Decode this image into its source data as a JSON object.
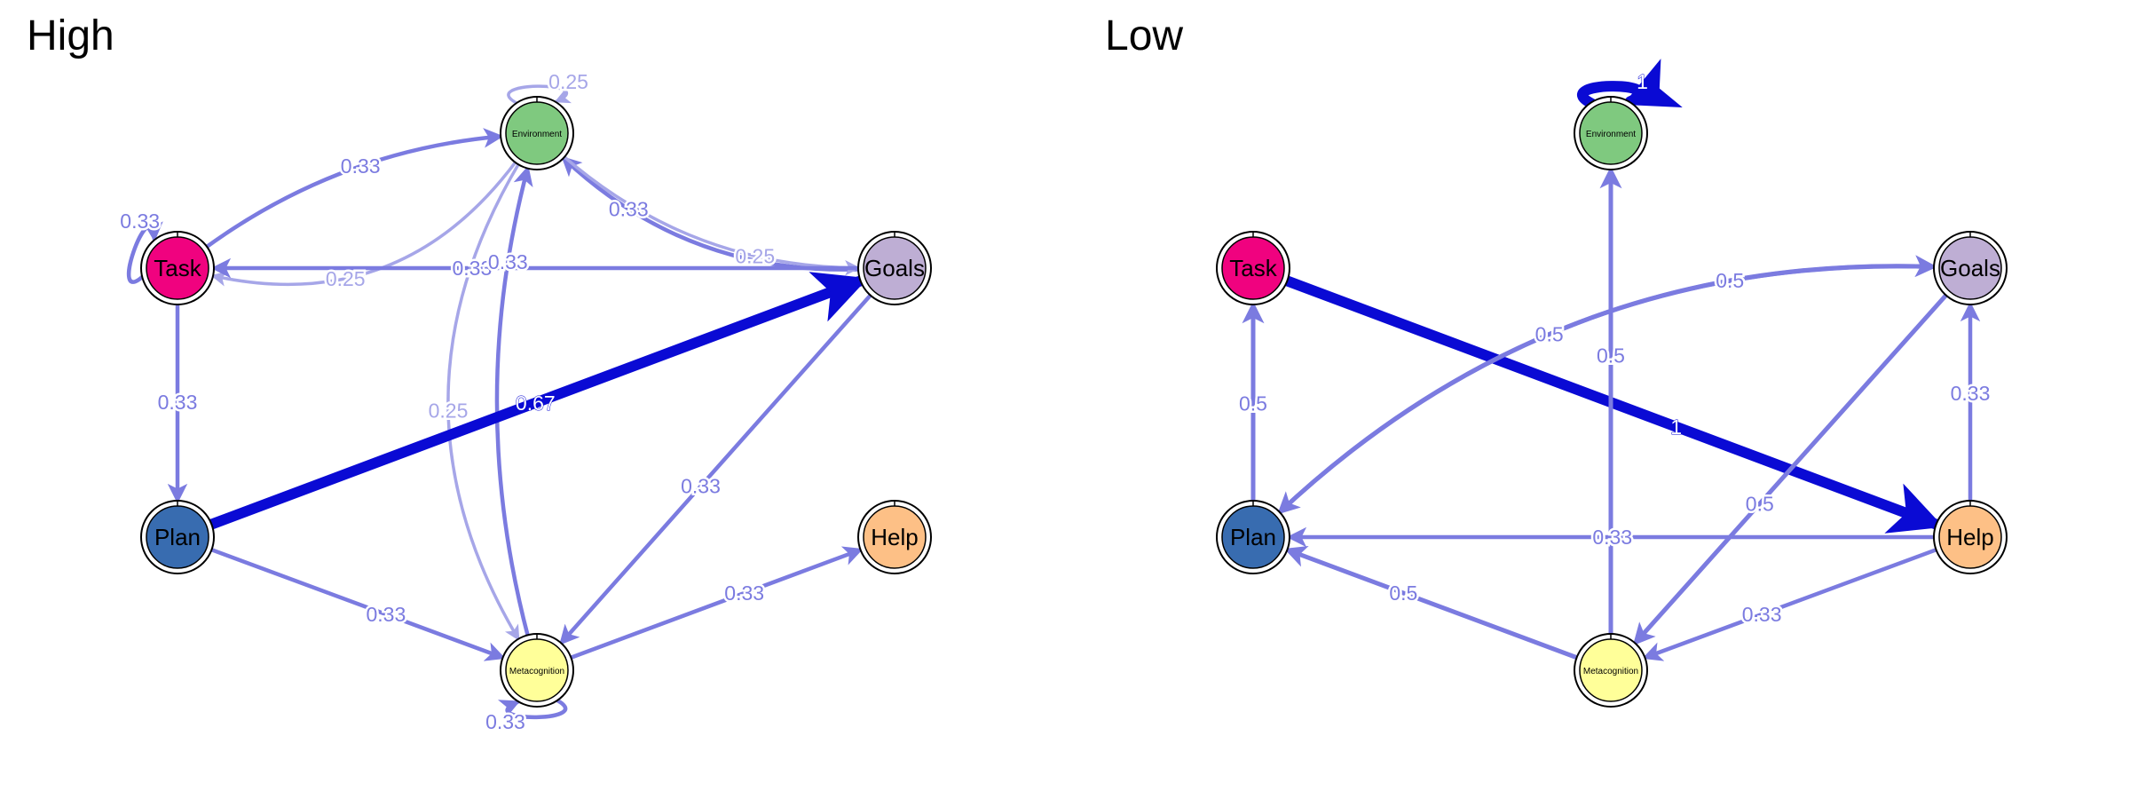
{
  "colors": {
    "edge_strong": "#0a0ad4",
    "edge_mid": "#7b7be0",
    "edge_light": "#a6a6e8",
    "label_on_edge": "#ffffff"
  },
  "panels": [
    {
      "title": "High",
      "nodes": [
        {
          "id": "env",
          "label": "Environment",
          "color": "#7fc97f",
          "small": true
        },
        {
          "id": "task",
          "label": "Task",
          "color": "#f0027f"
        },
        {
          "id": "goals",
          "label": "Goals",
          "color": "#beaed4"
        },
        {
          "id": "plan",
          "label": "Plan",
          "color": "#386cb0"
        },
        {
          "id": "help",
          "label": "Help",
          "color": "#fdc086"
        },
        {
          "id": "meta",
          "label": "Metacognition",
          "color": "#ffff99",
          "small": true
        }
      ],
      "edges": [
        {
          "from": "env",
          "to": "env",
          "weight": 0.25,
          "label": "0.25"
        },
        {
          "from": "task",
          "to": "task",
          "weight": 0.33,
          "label": "0.33"
        },
        {
          "from": "meta",
          "to": "meta",
          "weight": 0.33,
          "label": "0.33"
        },
        {
          "from": "env",
          "to": "task",
          "weight": 0.25,
          "label": "0.25"
        },
        {
          "from": "task",
          "to": "env",
          "weight": 0.33,
          "label": "0.33"
        },
        {
          "from": "goals",
          "to": "env",
          "weight": 0.33,
          "label": "0.33"
        },
        {
          "from": "env",
          "to": "goals",
          "weight": 0.25,
          "label": "0.25"
        },
        {
          "from": "goals",
          "to": "task",
          "weight": 0.33,
          "label": "0.33"
        },
        {
          "from": "meta",
          "to": "env",
          "weight": 0.33,
          "label": "0.33"
        },
        {
          "from": "env",
          "to": "meta",
          "weight": 0.25,
          "label": "0.25"
        },
        {
          "from": "task",
          "to": "plan",
          "weight": 0.33,
          "label": "0.33"
        },
        {
          "from": "plan",
          "to": "goals",
          "weight": 0.67,
          "label": "0.67"
        },
        {
          "from": "plan",
          "to": "meta",
          "weight": 0.33,
          "label": "0.33"
        },
        {
          "from": "goals",
          "to": "meta",
          "weight": 0.33,
          "label": "0.33"
        },
        {
          "from": "meta",
          "to": "help",
          "weight": 0.33,
          "label": "0.33"
        }
      ]
    },
    {
      "title": "Low",
      "nodes": [
        {
          "id": "env",
          "label": "Environment",
          "color": "#7fc97f",
          "small": true
        },
        {
          "id": "task",
          "label": "Task",
          "color": "#f0027f"
        },
        {
          "id": "goals",
          "label": "Goals",
          "color": "#beaed4"
        },
        {
          "id": "plan",
          "label": "Plan",
          "color": "#386cb0"
        },
        {
          "id": "help",
          "label": "Help",
          "color": "#fdc086"
        },
        {
          "id": "meta",
          "label": "Metacognition",
          "color": "#ffff99",
          "small": true
        }
      ],
      "edges": [
        {
          "from": "env",
          "to": "env",
          "weight": 1,
          "label": "1"
        },
        {
          "from": "task",
          "to": "help",
          "weight": 1,
          "label": "1"
        },
        {
          "from": "plan",
          "to": "task",
          "weight": 0.5,
          "label": "0.5"
        },
        {
          "from": "meta",
          "to": "env",
          "weight": 0.5,
          "label": "0.5"
        },
        {
          "from": "goals",
          "to": "plan",
          "weight": 0.5,
          "label": "0.5"
        },
        {
          "from": "plan",
          "to": "goals",
          "weight": 0.5,
          "label": "0.5"
        },
        {
          "from": "goals",
          "to": "meta",
          "weight": 0.5,
          "label": "0.5"
        },
        {
          "from": "help",
          "to": "goals",
          "weight": 0.33,
          "label": "0.33"
        },
        {
          "from": "help",
          "to": "plan",
          "weight": 0.33,
          "label": "0.33"
        },
        {
          "from": "meta",
          "to": "plan",
          "weight": 0.5,
          "label": "0.5"
        },
        {
          "from": "help",
          "to": "meta",
          "weight": 0.33,
          "label": "0.33"
        }
      ]
    }
  ]
}
